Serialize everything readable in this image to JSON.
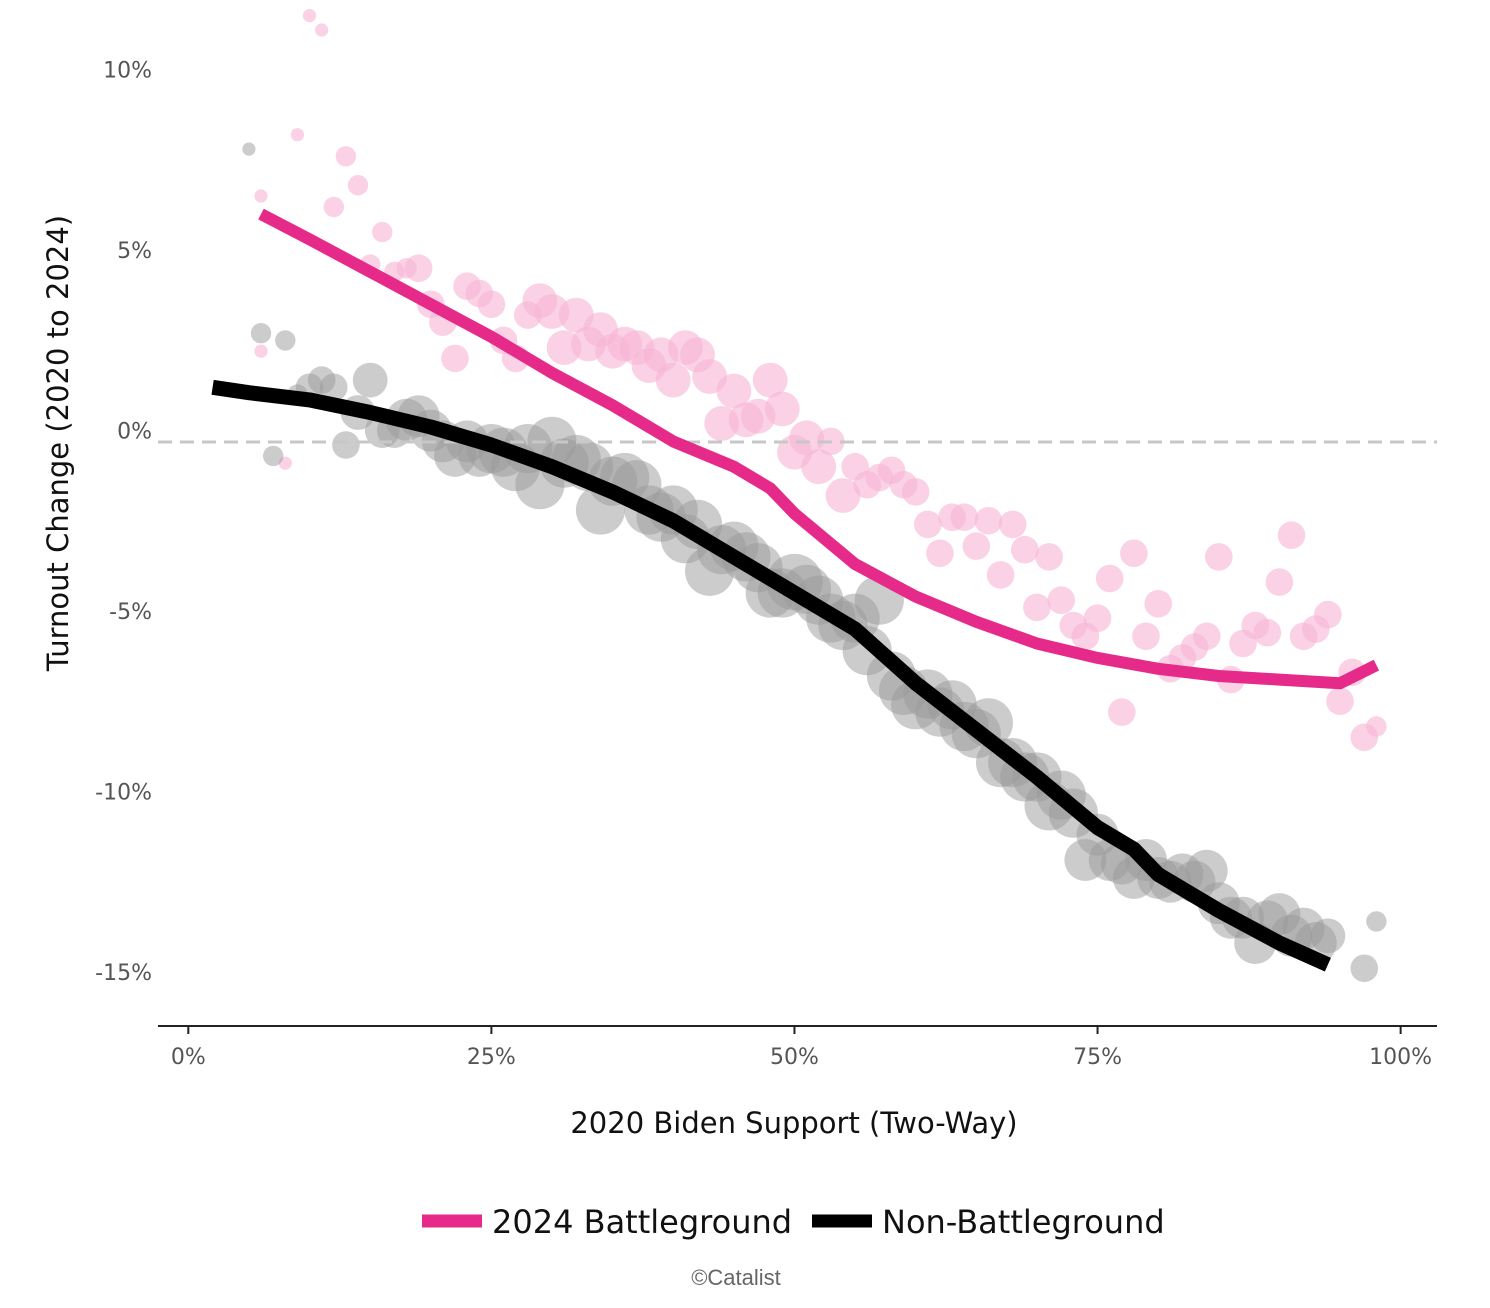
{
  "chart_data": {
    "type": "scatter",
    "title": "",
    "xlabel": "2020 Biden Support (Two-Way)",
    "ylabel": "Turnout Change (2020 to 2024)",
    "xlim": [
      -2.5,
      103
    ],
    "ylim": [
      -16.5,
      11.6
    ],
    "xticks": [
      0,
      25,
      50,
      75,
      100
    ],
    "xtick_labels": [
      "0%",
      "25%",
      "50%",
      "75%",
      "100%"
    ],
    "yticks": [
      10,
      5,
      0,
      -5,
      -10,
      -15
    ],
    "ytick_labels": [
      "10%",
      "5%",
      "0%",
      "-5%",
      "-10%",
      "-15%"
    ],
    "zero_line": true,
    "grid": false,
    "legend_position": "bottom-center",
    "credit": "©Catalist",
    "series": [
      {
        "name": "2024 Battleground",
        "color": "#e62a8a",
        "point_color": "#f7b4d5",
        "trend": [
          [
            6,
            6.0
          ],
          [
            10,
            5.3
          ],
          [
            15,
            4.4
          ],
          [
            20,
            3.5
          ],
          [
            25,
            2.6
          ],
          [
            30,
            1.6
          ],
          [
            35,
            0.7
          ],
          [
            40,
            -0.3
          ],
          [
            45,
            -1.0
          ],
          [
            48,
            -1.6
          ],
          [
            50,
            -2.3
          ],
          [
            55,
            -3.7
          ],
          [
            60,
            -4.6
          ],
          [
            65,
            -5.3
          ],
          [
            70,
            -5.9
          ],
          [
            75,
            -6.3
          ],
          [
            80,
            -6.6
          ],
          [
            85,
            -6.8
          ],
          [
            90,
            -6.9
          ],
          [
            95,
            -7.0
          ],
          [
            98,
            -6.5
          ]
        ],
        "points": [
          [
            6,
            6.5,
            1
          ],
          [
            6,
            2.2,
            1
          ],
          [
            8,
            -0.9,
            1
          ],
          [
            9,
            8.2,
            1
          ],
          [
            10,
            11.5,
            1
          ],
          [
            11,
            11.1,
            1
          ],
          [
            12,
            6.2,
            2
          ],
          [
            13,
            7.6,
            2
          ],
          [
            14,
            6.8,
            2
          ],
          [
            15,
            4.6,
            2
          ],
          [
            16,
            5.5,
            2
          ],
          [
            17,
            4.4,
            2
          ],
          [
            18,
            4.5,
            2
          ],
          [
            19,
            4.5,
            3
          ],
          [
            20,
            3.5,
            3
          ],
          [
            21,
            3.0,
            3
          ],
          [
            22,
            2.0,
            3
          ],
          [
            23,
            4.0,
            3
          ],
          [
            24,
            3.8,
            3
          ],
          [
            25,
            3.5,
            3
          ],
          [
            26,
            2.5,
            3
          ],
          [
            27,
            2.0,
            3
          ],
          [
            28,
            3.2,
            3
          ],
          [
            29,
            3.6,
            4
          ],
          [
            30,
            3.3,
            4
          ],
          [
            31,
            2.3,
            4
          ],
          [
            32,
            3.2,
            4
          ],
          [
            33,
            2.4,
            4
          ],
          [
            34,
            2.8,
            4
          ],
          [
            35,
            2.2,
            4
          ],
          [
            36,
            2.4,
            4
          ],
          [
            37,
            2.3,
            4
          ],
          [
            38,
            1.8,
            4
          ],
          [
            39,
            2.1,
            4
          ],
          [
            40,
            1.4,
            4
          ],
          [
            41,
            2.3,
            4
          ],
          [
            42,
            2.1,
            4
          ],
          [
            43,
            1.5,
            4
          ],
          [
            44,
            0.2,
            4
          ],
          [
            45,
            1.1,
            4
          ],
          [
            46,
            0.3,
            4
          ],
          [
            47,
            0.4,
            4
          ],
          [
            48,
            1.4,
            4
          ],
          [
            49,
            0.6,
            4
          ],
          [
            50,
            -0.6,
            4
          ],
          [
            51,
            -0.2,
            4
          ],
          [
            52,
            -1.0,
            4
          ],
          [
            53,
            -0.3,
            3
          ],
          [
            54,
            -1.8,
            4
          ],
          [
            55,
            -1.0,
            3
          ],
          [
            56,
            -1.5,
            3
          ],
          [
            57,
            -1.3,
            3
          ],
          [
            58,
            -1.1,
            3
          ],
          [
            59,
            -1.5,
            3
          ],
          [
            60,
            -1.7,
            3
          ],
          [
            61,
            -2.6,
            3
          ],
          [
            62,
            -3.4,
            3
          ],
          [
            63,
            -2.4,
            3
          ],
          [
            64,
            -2.4,
            3
          ],
          [
            65,
            -3.2,
            3
          ],
          [
            66,
            -2.5,
            3
          ],
          [
            67,
            -4.0,
            3
          ],
          [
            68,
            -2.6,
            3
          ],
          [
            69,
            -3.3,
            3
          ],
          [
            70,
            -4.9,
            3
          ],
          [
            71,
            -3.5,
            3
          ],
          [
            72,
            -4.7,
            3
          ],
          [
            73,
            -5.4,
            3
          ],
          [
            74,
            -5.7,
            3
          ],
          [
            75,
            -5.2,
            3
          ],
          [
            76,
            -4.1,
            3
          ],
          [
            77,
            -7.8,
            3
          ],
          [
            78,
            -3.4,
            3
          ],
          [
            79,
            -5.7,
            3
          ],
          [
            80,
            -4.8,
            3
          ],
          [
            81,
            -6.6,
            3
          ],
          [
            82,
            -6.3,
            3
          ],
          [
            83,
            -6.0,
            3
          ],
          [
            84,
            -5.7,
            3
          ],
          [
            85,
            -3.5,
            3
          ],
          [
            86,
            -6.9,
            3
          ],
          [
            87,
            -5.9,
            3
          ],
          [
            88,
            -5.4,
            3
          ],
          [
            89,
            -5.6,
            3
          ],
          [
            90,
            -4.2,
            3
          ],
          [
            91,
            -2.9,
            3
          ],
          [
            92,
            -5.7,
            3
          ],
          [
            93,
            -5.5,
            3
          ],
          [
            94,
            -5.1,
            3
          ],
          [
            95,
            -7.5,
            3
          ],
          [
            96,
            -6.7,
            3
          ],
          [
            97,
            -8.5,
            3
          ],
          [
            98,
            -8.2,
            2
          ]
        ]
      },
      {
        "name": "Non-Battleground",
        "color": "#000000",
        "point_color": "#9a9a9a",
        "trend": [
          [
            2,
            1.2
          ],
          [
            5,
            1.05
          ],
          [
            10,
            0.85
          ],
          [
            15,
            0.5
          ],
          [
            20,
            0.1
          ],
          [
            25,
            -0.4
          ],
          [
            30,
            -1.0
          ],
          [
            35,
            -1.7
          ],
          [
            40,
            -2.5
          ],
          [
            45,
            -3.5
          ],
          [
            50,
            -4.5
          ],
          [
            55,
            -5.5
          ],
          [
            60,
            -7.0
          ],
          [
            65,
            -8.3
          ],
          [
            70,
            -9.6
          ],
          [
            75,
            -11.0
          ],
          [
            78,
            -11.6
          ],
          [
            80,
            -12.3
          ],
          [
            85,
            -13.3
          ],
          [
            90,
            -14.2
          ],
          [
            94,
            -14.8
          ]
        ],
        "points": [
          [
            5,
            7.8,
            1
          ],
          [
            6,
            2.7,
            2
          ],
          [
            7,
            -0.7,
            2
          ],
          [
            8,
            2.5,
            2
          ],
          [
            9,
            1.0,
            2
          ],
          [
            10,
            1.2,
            3
          ],
          [
            11,
            1.4,
            3
          ],
          [
            12,
            1.2,
            3
          ],
          [
            13,
            -0.4,
            3
          ],
          [
            14,
            0.5,
            4
          ],
          [
            15,
            1.4,
            4
          ],
          [
            16,
            0.0,
            4
          ],
          [
            17,
            0.0,
            4
          ],
          [
            18,
            0.3,
            5
          ],
          [
            19,
            0.4,
            5
          ],
          [
            20,
            0.0,
            5
          ],
          [
            21,
            -0.3,
            5
          ],
          [
            22,
            -0.7,
            5
          ],
          [
            23,
            -0.3,
            5
          ],
          [
            24,
            -0.7,
            5
          ],
          [
            25,
            -0.5,
            6
          ],
          [
            26,
            -0.6,
            6
          ],
          [
            27,
            -1.0,
            6
          ],
          [
            28,
            -0.5,
            6
          ],
          [
            29,
            -1.5,
            6
          ],
          [
            30,
            -0.3,
            6
          ],
          [
            31,
            -0.9,
            6
          ],
          [
            32,
            -0.8,
            6
          ],
          [
            33,
            -1.0,
            6
          ],
          [
            34,
            -2.2,
            6
          ],
          [
            35,
            -1.4,
            6
          ],
          [
            36,
            -1.3,
            6
          ],
          [
            37,
            -1.5,
            6
          ],
          [
            38,
            -2.2,
            6
          ],
          [
            39,
            -2.4,
            6
          ],
          [
            40,
            -2.2,
            6
          ],
          [
            41,
            -3.0,
            6
          ],
          [
            42,
            -2.6,
            6
          ],
          [
            43,
            -3.9,
            6
          ],
          [
            44,
            -3.3,
            6
          ],
          [
            45,
            -3.2,
            6
          ],
          [
            46,
            -3.5,
            6
          ],
          [
            47,
            -3.8,
            6
          ],
          [
            48,
            -4.5,
            6
          ],
          [
            49,
            -4.5,
            6
          ],
          [
            50,
            -4.2,
            7
          ],
          [
            51,
            -4.4,
            6
          ],
          [
            52,
            -4.7,
            6
          ],
          [
            53,
            -5.2,
            6
          ],
          [
            54,
            -5.4,
            6
          ],
          [
            55,
            -5.2,
            6
          ],
          [
            56,
            -6.1,
            6
          ],
          [
            57,
            -4.7,
            6
          ],
          [
            58,
            -6.8,
            6
          ],
          [
            59,
            -7.2,
            6
          ],
          [
            60,
            -7.6,
            6
          ],
          [
            61,
            -7.3,
            6
          ],
          [
            62,
            -7.8,
            6
          ],
          [
            63,
            -7.6,
            6
          ],
          [
            64,
            -8.2,
            6
          ],
          [
            65,
            -8.4,
            6
          ],
          [
            66,
            -8.1,
            6
          ],
          [
            67,
            -9.2,
            6
          ],
          [
            68,
            -9.2,
            6
          ],
          [
            69,
            -9.6,
            6
          ],
          [
            70,
            -9.6,
            6
          ],
          [
            71,
            -10.4,
            6
          ],
          [
            72,
            -10.1,
            6
          ],
          [
            73,
            -10.6,
            6
          ],
          [
            74,
            -11.9,
            5
          ],
          [
            75,
            -11.2,
            5
          ],
          [
            76,
            -11.9,
            5
          ],
          [
            77,
            -12.0,
            5
          ],
          [
            78,
            -12.4,
            5
          ],
          [
            79,
            -11.9,
            5
          ],
          [
            80,
            -12.4,
            5
          ],
          [
            81,
            -12.5,
            5
          ],
          [
            82,
            -12.3,
            5
          ],
          [
            83,
            -12.5,
            5
          ],
          [
            84,
            -12.2,
            5
          ],
          [
            85,
            -13.1,
            5
          ],
          [
            86,
            -13.5,
            5
          ],
          [
            87,
            -13.5,
            5
          ],
          [
            88,
            -14.2,
            5
          ],
          [
            89,
            -13.6,
            5
          ],
          [
            90,
            -13.4,
            5
          ],
          [
            91,
            -14.0,
            5
          ],
          [
            92,
            -13.8,
            5
          ],
          [
            93,
            -14.2,
            5
          ],
          [
            94,
            -14.0,
            4
          ],
          [
            97,
            -14.9,
            3
          ],
          [
            98,
            -13.6,
            2
          ]
        ]
      }
    ]
  }
}
